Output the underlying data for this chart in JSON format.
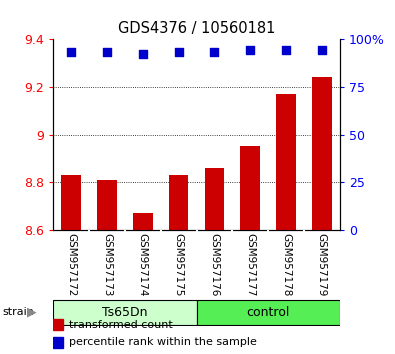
{
  "title": "GDS4376 / 10560181",
  "samples": [
    "GSM957172",
    "GSM957173",
    "GSM957174",
    "GSM957175",
    "GSM957176",
    "GSM957177",
    "GSM957178",
    "GSM957179"
  ],
  "bar_values": [
    8.83,
    8.81,
    8.67,
    8.83,
    8.86,
    8.95,
    9.17,
    9.24
  ],
  "percentile_values": [
    93,
    93,
    92,
    93,
    93,
    94,
    94,
    94
  ],
  "groups": [
    {
      "label": "Ts65Dn",
      "start": 0,
      "end": 4,
      "color": "#ccffcc"
    },
    {
      "label": "control",
      "start": 4,
      "end": 8,
      "color": "#55ee55"
    }
  ],
  "ylim_left": [
    8.6,
    9.4
  ],
  "ylim_right": [
    0,
    100
  ],
  "bar_color": "#cc0000",
  "dot_color": "#0000cc",
  "yticks_left": [
    8.6,
    8.8,
    9.0,
    9.2,
    9.4
  ],
  "ytick_labels_left": [
    "8.6",
    "8.8",
    "9",
    "9.2",
    "9.4"
  ],
  "yticks_right": [
    0,
    25,
    50,
    75,
    100
  ],
  "ytick_labels_right": [
    "0",
    "25",
    "50",
    "75",
    "100%"
  ],
  "grid_lines": [
    8.8,
    9.0,
    9.2
  ],
  "plot_bg": "#ffffff",
  "label_bg": "#cccccc",
  "bar_width": 0.55,
  "dot_size": 28
}
